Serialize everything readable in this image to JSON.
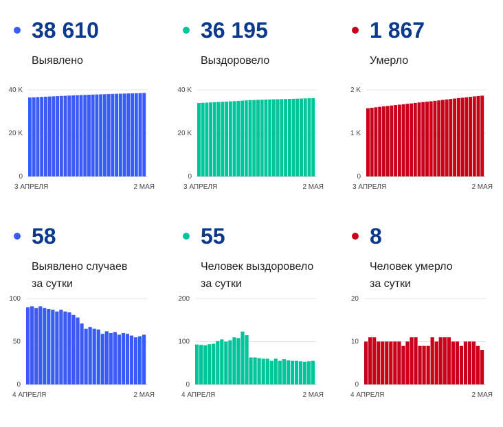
{
  "chart_data": [
    {
      "type": "bar",
      "title": "38 610",
      "subtitle": "Выявлено",
      "color": "#3a5cf5",
      "ylim": [
        0,
        40000
      ],
      "yticks": [
        "0",
        "20 K",
        "40 K"
      ],
      "ytick_values": [
        0,
        20000,
        40000
      ],
      "xlabels": [
        "3 АПРЕЛЯ",
        "2 МАЯ"
      ],
      "values": [
        36508,
        36598,
        36689,
        36778,
        36869,
        36958,
        37046,
        37133,
        37218,
        37305,
        37390,
        37474,
        37555,
        37633,
        37704,
        37769,
        37836,
        37901,
        37965,
        38024,
        38086,
        38146,
        38207,
        38265,
        38325,
        38384,
        38441,
        38496,
        38552,
        38610
      ]
    },
    {
      "type": "bar",
      "title": "36 195",
      "subtitle": "Выздоровело",
      "color": "#00c49a",
      "ylim": [
        0,
        40000
      ],
      "yticks": [
        "0",
        "20 K",
        "40 K"
      ],
      "ytick_values": [
        0,
        20000,
        40000
      ],
      "xlabels": [
        "3 АПРЕЛЯ",
        "2 МАЯ"
      ],
      "values": [
        33947,
        34040,
        34132,
        34223,
        34317,
        34412,
        34513,
        34618,
        34718,
        34821,
        34931,
        35039,
        35162,
        35277,
        35340,
        35403,
        35464,
        35524,
        35584,
        35639,
        35699,
        35754,
        35813,
        35869,
        35924,
        35979,
        36033,
        36086,
        36140,
        36195
      ]
    },
    {
      "type": "bar",
      "title": "1 867",
      "subtitle": "Умерло",
      "color": "#c8001a",
      "ylim": [
        0,
        2000
      ],
      "yticks": [
        "0",
        "1 K",
        "2 K"
      ],
      "ytick_values": [
        0,
        1000,
        2000
      ],
      "xlabels": [
        "3 АПРЕЛЯ",
        "2 МАЯ"
      ],
      "values": [
        1577,
        1587,
        1598,
        1609,
        1619,
        1629,
        1639,
        1649,
        1659,
        1669,
        1678,
        1688,
        1699,
        1710,
        1719,
        1728,
        1737,
        1748,
        1758,
        1769,
        1780,
        1791,
        1801,
        1811,
        1820,
        1830,
        1840,
        1850,
        1859,
        1867
      ]
    },
    {
      "type": "bar",
      "title": "58",
      "subtitle": "Выявлено случаев",
      "subtitle2": "за сутки",
      "color": "#3a5cf5",
      "ylim": [
        0,
        100
      ],
      "yticks": [
        "0",
        "50",
        "100"
      ],
      "ytick_values": [
        0,
        50,
        100
      ],
      "xlabels": [
        "4 АПРЕЛЯ",
        "2 МАЯ"
      ],
      "values": [
        90,
        91,
        89,
        91,
        89,
        88,
        87,
        85,
        87,
        85,
        84,
        81,
        78,
        71,
        65,
        67,
        65,
        64,
        59,
        62,
        60,
        61,
        58,
        60,
        59,
        57,
        55,
        56,
        58
      ]
    },
    {
      "type": "bar",
      "title": "55",
      "subtitle": "Человек выздоровело",
      "subtitle2": "за сутки",
      "color": "#00c49a",
      "ylim": [
        0,
        200
      ],
      "yticks": [
        "0",
        "100",
        "200"
      ],
      "ytick_values": [
        0,
        100,
        200
      ],
      "xlabels": [
        "4 АПРЕЛЯ",
        "2 МАЯ"
      ],
      "values": [
        93,
        92,
        91,
        94,
        95,
        101,
        105,
        100,
        103,
        110,
        108,
        123,
        115,
        63,
        63,
        61,
        60,
        60,
        55,
        60,
        55,
        59,
        56,
        55,
        55,
        54,
        53,
        54,
        55
      ]
    },
    {
      "type": "bar",
      "title": "8",
      "subtitle": "Человек умерло",
      "subtitle2": "за сутки",
      "color": "#c8001a",
      "ylim": [
        0,
        20
      ],
      "yticks": [
        "0",
        "10",
        "20"
      ],
      "ytick_values": [
        0,
        10,
        20
      ],
      "xlabels": [
        "4 АПРЕЛЯ",
        "2 МАЯ"
      ],
      "values": [
        10,
        11,
        11,
        10,
        10,
        10,
        10,
        10,
        10,
        9,
        10,
        11,
        11,
        9,
        9,
        9,
        11,
        10,
        11,
        11,
        11,
        10,
        10,
        9,
        10,
        10,
        10,
        9,
        8
      ]
    }
  ]
}
